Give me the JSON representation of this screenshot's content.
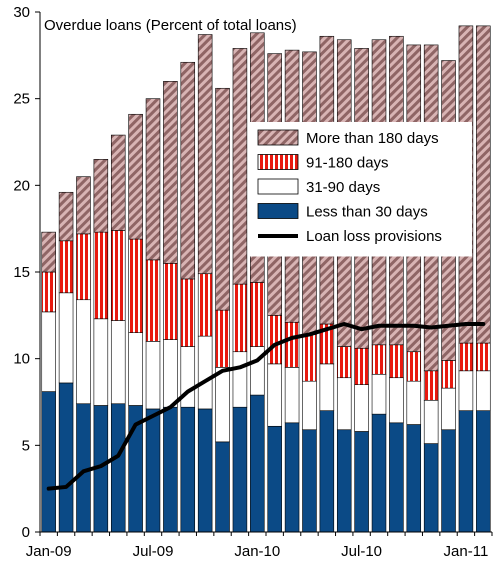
{
  "chart_data": {
    "type": "bar",
    "stacked": true,
    "title": "Overdue loans (Percent  of total loans)",
    "ylim": [
      0,
      30
    ],
    "yticks": [
      0,
      5,
      10,
      15,
      20,
      25,
      30
    ],
    "grid": false,
    "legend_position": "right-middle",
    "categories": [
      "Jan-09",
      "Feb-09",
      "Mar-09",
      "Apr-09",
      "May-09",
      "Jun-09",
      "Jul-09",
      "Aug-09",
      "Sep-09",
      "Oct-09",
      "Nov-09",
      "Dec-09",
      "Jan-10",
      "Feb-10",
      "Mar-10",
      "Apr-10",
      "May-10",
      "Jun-10",
      "Jul-10",
      "Aug-10",
      "Sep-10",
      "Oct-10",
      "Nov-10",
      "Dec-10",
      "Jan-11",
      "Feb-11"
    ],
    "x_tick_labels": [
      {
        "index": 0,
        "label": "Jan-09"
      },
      {
        "index": 6,
        "label": "Jul-09"
      },
      {
        "index": 12,
        "label": "Jan-10"
      },
      {
        "index": 18,
        "label": "Jul-10"
      },
      {
        "index": 24,
        "label": "Jan-11"
      }
    ],
    "series": [
      {
        "name": "Less than 30 days",
        "color": "#0b4a86",
        "pattern": "solid",
        "values": [
          8.1,
          8.6,
          7.4,
          7.3,
          7.4,
          7.3,
          7.1,
          7.2,
          7.2,
          7.1,
          5.2,
          7.2,
          7.9,
          6.1,
          6.3,
          5.9,
          7.0,
          5.9,
          5.8,
          6.8,
          6.3,
          6.2,
          5.1,
          5.9,
          7.0,
          7.0
        ]
      },
      {
        "name": "31-90 days",
        "color": "#ffffff",
        "pattern": "solid",
        "values": [
          4.6,
          5.2,
          6.0,
          5.0,
          4.8,
          4.2,
          3.9,
          3.9,
          3.5,
          4.2,
          4.3,
          3.2,
          2.8,
          3.6,
          3.2,
          2.8,
          2.7,
          3.0,
          2.7,
          2.3,
          2.6,
          2.5,
          2.5,
          2.4,
          2.3,
          2.3
        ]
      },
      {
        "name": "91-180 days",
        "color": "#e8190f",
        "pattern": "vertical-stripes",
        "values": [
          2.3,
          3.0,
          3.8,
          5.0,
          5.2,
          5.4,
          4.7,
          4.4,
          3.9,
          3.6,
          3.3,
          3.9,
          3.7,
          2.8,
          2.6,
          2.7,
          2.3,
          1.8,
          2.1,
          1.7,
          1.9,
          1.7,
          1.7,
          1.6,
          1.6,
          1.6
        ]
      },
      {
        "name": "More than 180 days",
        "color": "#a07070",
        "pattern": "diagonal-stripes",
        "values": [
          2.3,
          2.8,
          3.3,
          4.2,
          5.5,
          7.2,
          9.3,
          10.5,
          12.5,
          13.8,
          12.8,
          13.6,
          14.4,
          15.1,
          15.7,
          16.3,
          16.6,
          17.7,
          17.3,
          17.6,
          17.8,
          17.7,
          18.8,
          17.3,
          18.3,
          18.3
        ]
      },
      {
        "name": "Loan loss provisions",
        "type": "line",
        "color": "#000000",
        "values": [
          2.5,
          2.6,
          3.5,
          3.8,
          4.4,
          6.2,
          6.7,
          7.2,
          8.1,
          8.7,
          9.3,
          9.5,
          9.9,
          10.8,
          11.2,
          11.4,
          11.7,
          12.0,
          11.7,
          11.9,
          11.9,
          11.9,
          11.8,
          11.9,
          12.0,
          12.0
        ]
      }
    ],
    "legend_order": [
      "More than 180 days",
      "91-180 days",
      "31-90 days",
      "Less than 30 days",
      "Loan loss provisions"
    ]
  }
}
